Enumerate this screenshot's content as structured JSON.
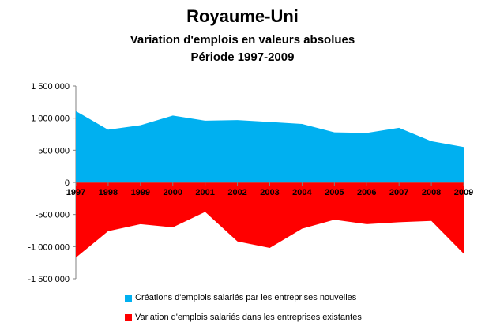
{
  "chart_data": {
    "type": "area",
    "title": "Royaume-Uni",
    "subtitle1": "Variation d'emplois en valeurs absolues",
    "subtitle2": "Période 1997-2009",
    "categories": [
      "1997",
      "1998",
      "1999",
      "2000",
      "2001",
      "2002",
      "2003",
      "2004",
      "2005",
      "2006",
      "2007",
      "2008",
      "2009"
    ],
    "ylim": [
      -1500000,
      1500000
    ],
    "yticks": [
      1500000,
      1000000,
      500000,
      0,
      -500000,
      -1000000,
      -1500000
    ],
    "ytick_labels": [
      "1 500 000",
      "1 000 000",
      "500 000",
      "0",
      "-500 000",
      "-1 000 000",
      "-1 500 000"
    ],
    "series": [
      {
        "name": "Créations d'emplois salariés par les entreprises nouvelles",
        "color": "#00b0f0",
        "values": [
          1110000,
          820000,
          890000,
          1040000,
          960000,
          970000,
          940000,
          910000,
          780000,
          770000,
          850000,
          640000,
          550000
        ]
      },
      {
        "name": "Variation d'emplois salariés dans les entreprises existantes",
        "color": "#ff0000",
        "values": [
          -1170000,
          -760000,
          -650000,
          -700000,
          -460000,
          -920000,
          -1020000,
          -720000,
          -580000,
          -650000,
          -620000,
          -600000,
          -1110000
        ]
      }
    ],
    "xlabel": "",
    "ylabel": "",
    "legend": "bottom"
  }
}
